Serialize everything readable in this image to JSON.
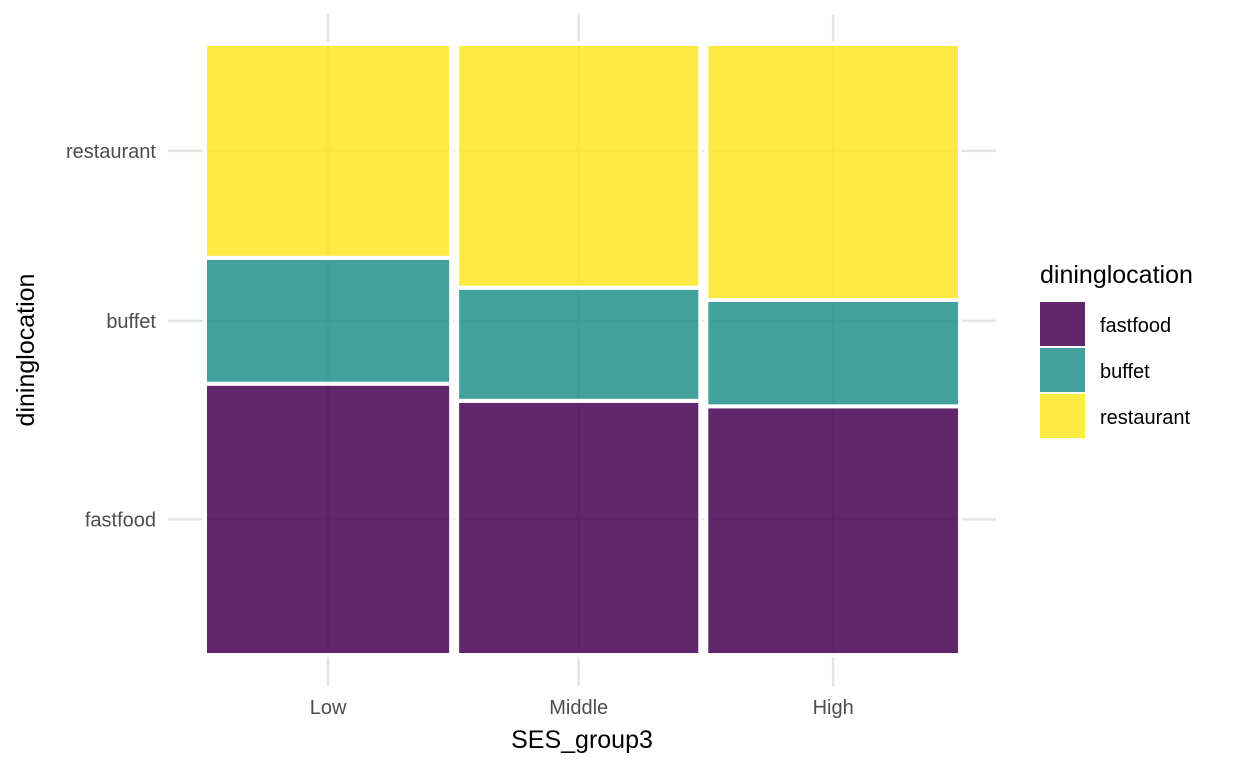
{
  "chart_data": {
    "type": "mosaic",
    "xlabel": "SES_group3",
    "ylabel": "dininglocation",
    "categories": [
      "Low",
      "Middle",
      "High"
    ],
    "column_widths": [
      0.33,
      0.33,
      0.34
    ],
    "series": [
      {
        "name": "fastfood",
        "values": [
          0.444,
          0.416,
          0.407
        ],
        "color": "#440154"
      },
      {
        "name": "buffet",
        "values": [
          0.206,
          0.185,
          0.174
        ],
        "color": "#21908C"
      },
      {
        "name": "restaurant",
        "values": [
          0.35,
          0.399,
          0.419
        ],
        "color": "#FDE725"
      }
    ],
    "y_tick_labels": [
      "fastfood",
      "buffet",
      "restaurant"
    ],
    "legend": {
      "title": "dininglocation",
      "position": "right"
    },
    "grid": true,
    "opacity": 0.85
  }
}
